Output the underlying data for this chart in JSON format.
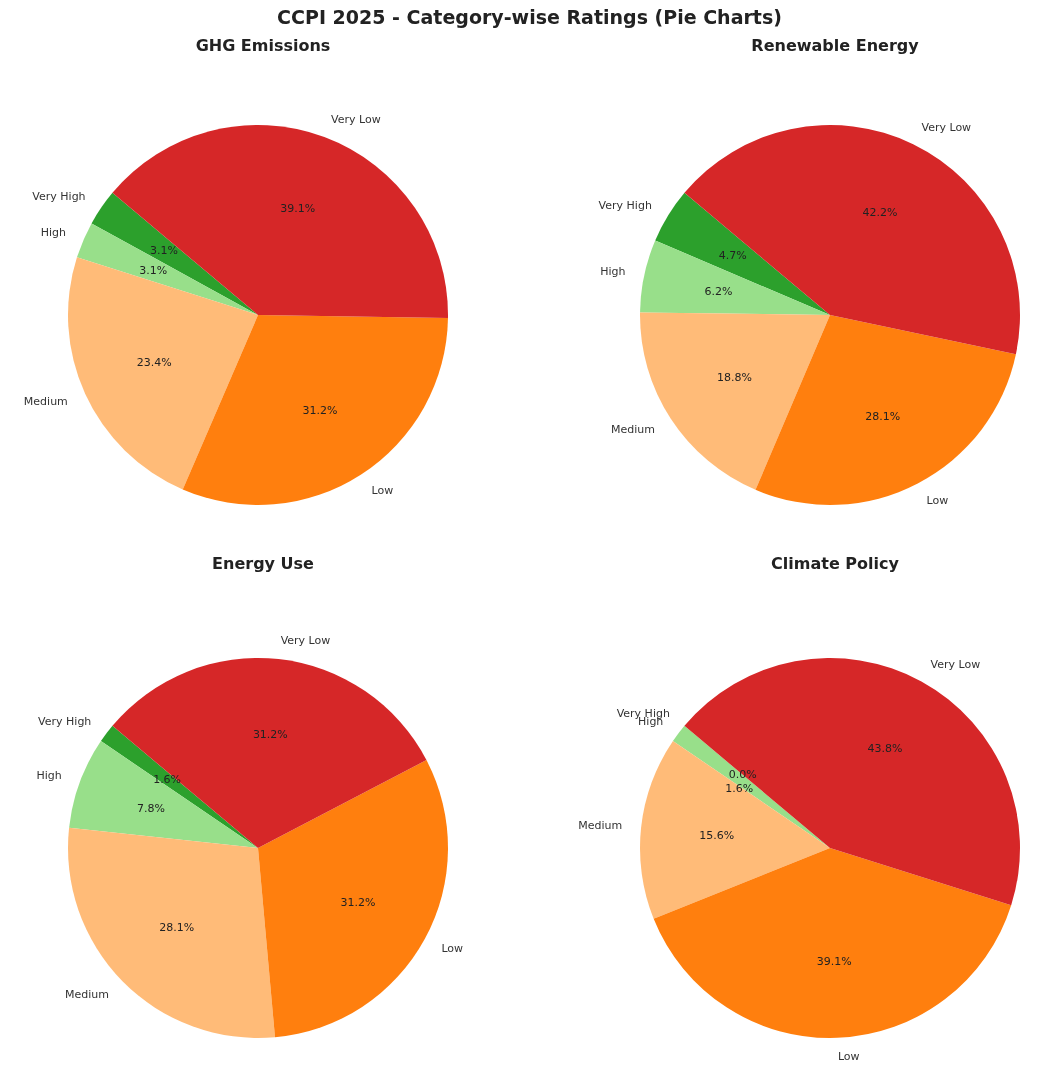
{
  "chart_data": [
    {
      "type": "pie",
      "title": "GHG Emissions",
      "annotations": [
        "CCPI 2025 - Category-wise Ratings (Pie Charts)"
      ],
      "categories": [
        "Very High",
        "High",
        "Medium",
        "Low",
        "Very Low"
      ],
      "values": [
        3.1,
        3.1,
        23.4,
        31.2,
        39.1
      ],
      "value_labels": [
        "3.1%",
        "3.1%",
        "23.4%",
        "31.2%",
        "39.1%"
      ],
      "colors": [
        "#2ca02c",
        "#98df8a",
        "#ffbb78",
        "#ff7f0e",
        "#d62728"
      ]
    },
    {
      "type": "pie",
      "title": "Renewable Energy",
      "categories": [
        "Very High",
        "High",
        "Medium",
        "Low",
        "Very Low"
      ],
      "values": [
        4.7,
        6.2,
        18.8,
        28.1,
        42.2
      ],
      "value_labels": [
        "4.7%",
        "6.2%",
        "18.8%",
        "28.1%",
        "42.2%"
      ],
      "colors": [
        "#2ca02c",
        "#98df8a",
        "#ffbb78",
        "#ff7f0e",
        "#d62728"
      ]
    },
    {
      "type": "pie",
      "title": "Energy Use",
      "categories": [
        "Very High",
        "High",
        "Medium",
        "Low",
        "Very Low"
      ],
      "values": [
        1.6,
        7.8,
        28.1,
        31.2,
        31.2
      ],
      "value_labels": [
        "1.6%",
        "7.8%",
        "28.1%",
        "31.2%",
        "31.2%"
      ],
      "colors": [
        "#2ca02c",
        "#98df8a",
        "#ffbb78",
        "#ff7f0e",
        "#d62728"
      ]
    },
    {
      "type": "pie",
      "title": "Climate Policy",
      "categories": [
        "Very High",
        "High",
        "Medium",
        "Low",
        "Very Low"
      ],
      "values": [
        0.0,
        1.6,
        15.6,
        39.1,
        43.8
      ],
      "value_labels": [
        "0.0%",
        "1.6%",
        "15.6%",
        "39.1%",
        "43.8%"
      ],
      "colors": [
        "#2ca02c",
        "#98df8a",
        "#ffbb78",
        "#ff7f0e",
        "#d62728"
      ]
    }
  ]
}
